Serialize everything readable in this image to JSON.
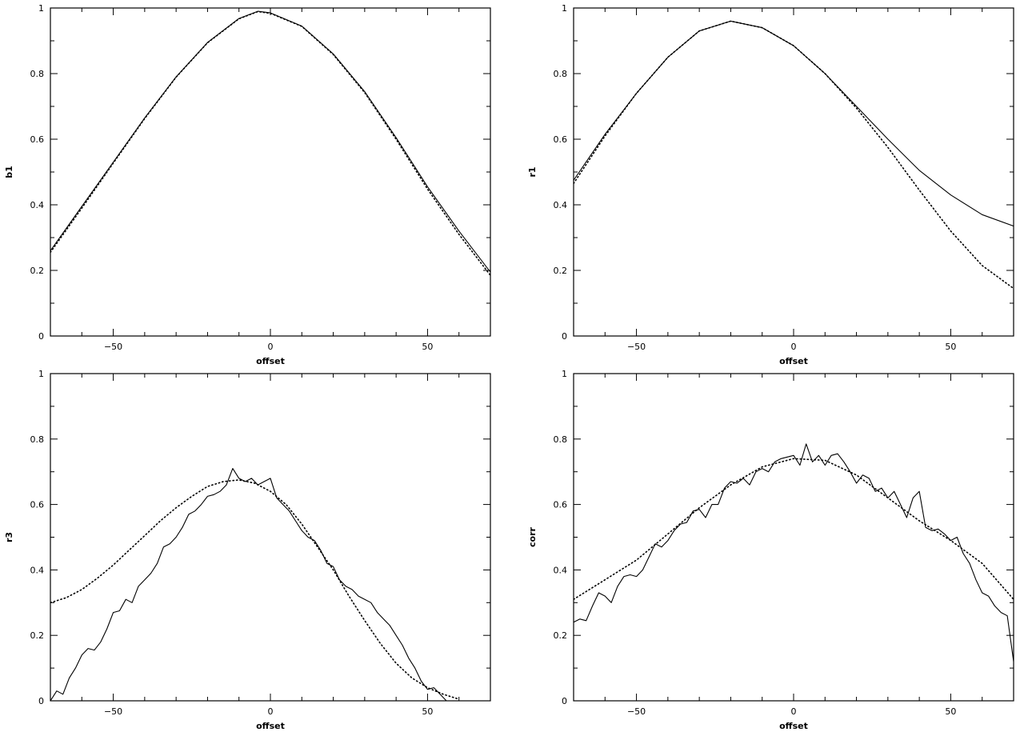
{
  "chart_data": [
    {
      "type": "line",
      "title": "",
      "xlabel": "offset",
      "ylabel": "b1",
      "xlim": [
        -70,
        70
      ],
      "ylim": [
        0,
        1
      ],
      "xticks": [
        -50,
        0,
        50
      ],
      "yticks": [
        0,
        0.2,
        0.4,
        0.6,
        0.8,
        1
      ],
      "xtick_labels": [
        "−50",
        "0",
        "50"
      ],
      "ytick_labels": [
        "0",
        "0.2",
        "0.4",
        "0.6",
        "0.8",
        "1"
      ],
      "grid": false,
      "series": [
        {
          "style": "solid",
          "x": [
            -70,
            -60,
            -50,
            -40,
            -30,
            -20,
            -10,
            -4,
            0,
            10,
            20,
            30,
            40,
            50,
            60,
            70
          ],
          "y": [
            0.26,
            0.395,
            0.53,
            0.665,
            0.79,
            0.895,
            0.968,
            0.99,
            0.985,
            0.945,
            0.86,
            0.745,
            0.605,
            0.455,
            0.32,
            0.195
          ]
        },
        {
          "style": "dotted",
          "x": [
            -70,
            -60,
            -50,
            -40,
            -30,
            -20,
            -10,
            -4,
            0,
            10,
            20,
            30,
            40,
            50,
            60,
            70
          ],
          "y": [
            0.255,
            0.39,
            0.527,
            0.663,
            0.789,
            0.894,
            0.967,
            0.989,
            0.984,
            0.944,
            0.858,
            0.742,
            0.6,
            0.448,
            0.31,
            0.185
          ]
        }
      ]
    },
    {
      "type": "line",
      "title": "",
      "xlabel": "offset",
      "ylabel": "r1",
      "xlim": [
        -70,
        70
      ],
      "ylim": [
        0,
        1
      ],
      "xticks": [
        -50,
        0,
        50
      ],
      "yticks": [
        0,
        0.2,
        0.4,
        0.6,
        0.8,
        1
      ],
      "xtick_labels": [
        "−50",
        "0",
        "50"
      ],
      "ytick_labels": [
        "0",
        "0.2",
        "0.4",
        "0.6",
        "0.8",
        "1"
      ],
      "grid": false,
      "series": [
        {
          "style": "solid",
          "x": [
            -70,
            -60,
            -50,
            -40,
            -30,
            -20,
            -10,
            0,
            10,
            20,
            30,
            40,
            50,
            60,
            70
          ],
          "y": [
            0.475,
            0.615,
            0.74,
            0.85,
            0.93,
            0.96,
            0.94,
            0.885,
            0.8,
            0.7,
            0.6,
            0.505,
            0.43,
            0.37,
            0.335
          ]
        },
        {
          "style": "dotted",
          "x": [
            -70,
            -60,
            -50,
            -40,
            -30,
            -20,
            -10,
            0,
            10,
            20,
            30,
            40,
            50,
            60,
            70
          ],
          "y": [
            0.465,
            0.61,
            0.74,
            0.85,
            0.93,
            0.96,
            0.94,
            0.885,
            0.8,
            0.695,
            0.575,
            0.445,
            0.32,
            0.215,
            0.145
          ]
        }
      ]
    },
    {
      "type": "line",
      "title": "",
      "xlabel": "offset",
      "ylabel": "r3",
      "xlim": [
        -70,
        70
      ],
      "ylim": [
        0,
        1
      ],
      "xticks": [
        -50,
        0,
        50
      ],
      "yticks": [
        0,
        0.2,
        0.4,
        0.6,
        0.8,
        1
      ],
      "xtick_labels": [
        "−50",
        "0",
        "50"
      ],
      "ytick_labels": [
        "0",
        "0.2",
        "0.4",
        "0.6",
        "0.8",
        "1"
      ],
      "grid": false,
      "series": [
        {
          "style": "solid",
          "x": [
            -70,
            -68,
            -66,
            -64,
            -62,
            -60,
            -58,
            -56,
            -54,
            -52,
            -50,
            -48,
            -46,
            -44,
            -42,
            -40,
            -38,
            -36,
            -34,
            -32,
            -30,
            -28,
            -26,
            -24,
            -22,
            -20,
            -18,
            -16,
            -14,
            -12,
            -10,
            -8,
            -6,
            -4,
            -2,
            0,
            2,
            4,
            6,
            8,
            10,
            12,
            14,
            16,
            18,
            20,
            22,
            24,
            26,
            28,
            30,
            32,
            34,
            36,
            38,
            40,
            42,
            44,
            46,
            48,
            50,
            52,
            54,
            56
          ],
          "y": [
            0.0,
            0.03,
            0.02,
            0.07,
            0.1,
            0.14,
            0.16,
            0.155,
            0.18,
            0.22,
            0.27,
            0.275,
            0.31,
            0.3,
            0.35,
            0.37,
            0.39,
            0.42,
            0.47,
            0.48,
            0.5,
            0.53,
            0.57,
            0.58,
            0.6,
            0.625,
            0.63,
            0.64,
            0.66,
            0.71,
            0.68,
            0.67,
            0.68,
            0.66,
            0.67,
            0.68,
            0.62,
            0.6,
            0.58,
            0.55,
            0.52,
            0.5,
            0.49,
            0.46,
            0.42,
            0.41,
            0.37,
            0.35,
            0.34,
            0.32,
            0.31,
            0.3,
            0.27,
            0.25,
            0.23,
            0.2,
            0.17,
            0.13,
            0.1,
            0.06,
            0.035,
            0.04,
            0.02,
            0.0
          ]
        },
        {
          "style": "dotted",
          "x": [
            -70,
            -65,
            -60,
            -55,
            -50,
            -45,
            -40,
            -35,
            -30,
            -25,
            -20,
            -15,
            -10,
            -5,
            0,
            5,
            10,
            15,
            20,
            25,
            30,
            35,
            40,
            45,
            50,
            55,
            60
          ],
          "y": [
            0.3,
            0.315,
            0.34,
            0.375,
            0.415,
            0.46,
            0.505,
            0.55,
            0.59,
            0.625,
            0.655,
            0.67,
            0.675,
            0.665,
            0.64,
            0.6,
            0.54,
            0.47,
            0.4,
            0.32,
            0.245,
            0.175,
            0.115,
            0.07,
            0.04,
            0.02,
            0.005
          ]
        }
      ]
    },
    {
      "type": "line",
      "title": "",
      "xlabel": "offset",
      "ylabel": "corr",
      "xlim": [
        -70,
        70
      ],
      "ylim": [
        0,
        1
      ],
      "xticks": [
        -50,
        0,
        50
      ],
      "yticks": [
        0,
        0.2,
        0.4,
        0.6,
        0.8,
        1
      ],
      "xtick_labels": [
        "−50",
        "0",
        "50"
      ],
      "ytick_labels": [
        "0",
        "0.2",
        "0.4",
        "0.6",
        "0.8",
        "1"
      ],
      "grid": false,
      "series": [
        {
          "style": "solid",
          "x": [
            -70,
            -68,
            -66,
            -64,
            -62,
            -60,
            -58,
            -56,
            -54,
            -52,
            -50,
            -48,
            -46,
            -44,
            -42,
            -40,
            -38,
            -36,
            -34,
            -32,
            -30,
            -28,
            -26,
            -24,
            -22,
            -20,
            -18,
            -16,
            -14,
            -12,
            -10,
            -8,
            -6,
            -4,
            -2,
            0,
            2,
            4,
            6,
            8,
            10,
            12,
            14,
            16,
            18,
            20,
            22,
            24,
            26,
            28,
            30,
            32,
            34,
            36,
            38,
            40,
            42,
            44,
            46,
            48,
            50,
            52,
            54,
            56,
            58,
            60,
            62,
            64,
            66,
            68,
            70
          ],
          "y": [
            0.24,
            0.25,
            0.245,
            0.29,
            0.33,
            0.32,
            0.3,
            0.35,
            0.38,
            0.385,
            0.38,
            0.4,
            0.44,
            0.48,
            0.47,
            0.49,
            0.52,
            0.54,
            0.545,
            0.58,
            0.585,
            0.56,
            0.6,
            0.6,
            0.65,
            0.67,
            0.665,
            0.68,
            0.66,
            0.7,
            0.71,
            0.7,
            0.73,
            0.74,
            0.745,
            0.75,
            0.72,
            0.785,
            0.73,
            0.75,
            0.72,
            0.75,
            0.755,
            0.73,
            0.7,
            0.665,
            0.69,
            0.68,
            0.64,
            0.65,
            0.62,
            0.64,
            0.6,
            0.56,
            0.62,
            0.64,
            0.53,
            0.52,
            0.525,
            0.51,
            0.49,
            0.5,
            0.45,
            0.42,
            0.37,
            0.33,
            0.32,
            0.29,
            0.27,
            0.26,
            0.12
          ]
        },
        {
          "style": "dotted",
          "x": [
            -70,
            -60,
            -50,
            -40,
            -30,
            -20,
            -10,
            0,
            10,
            20,
            30,
            40,
            50,
            60,
            70
          ],
          "y": [
            0.31,
            0.37,
            0.43,
            0.51,
            0.59,
            0.66,
            0.715,
            0.74,
            0.735,
            0.69,
            0.62,
            0.55,
            0.49,
            0.42,
            0.31
          ]
        }
      ]
    }
  ]
}
